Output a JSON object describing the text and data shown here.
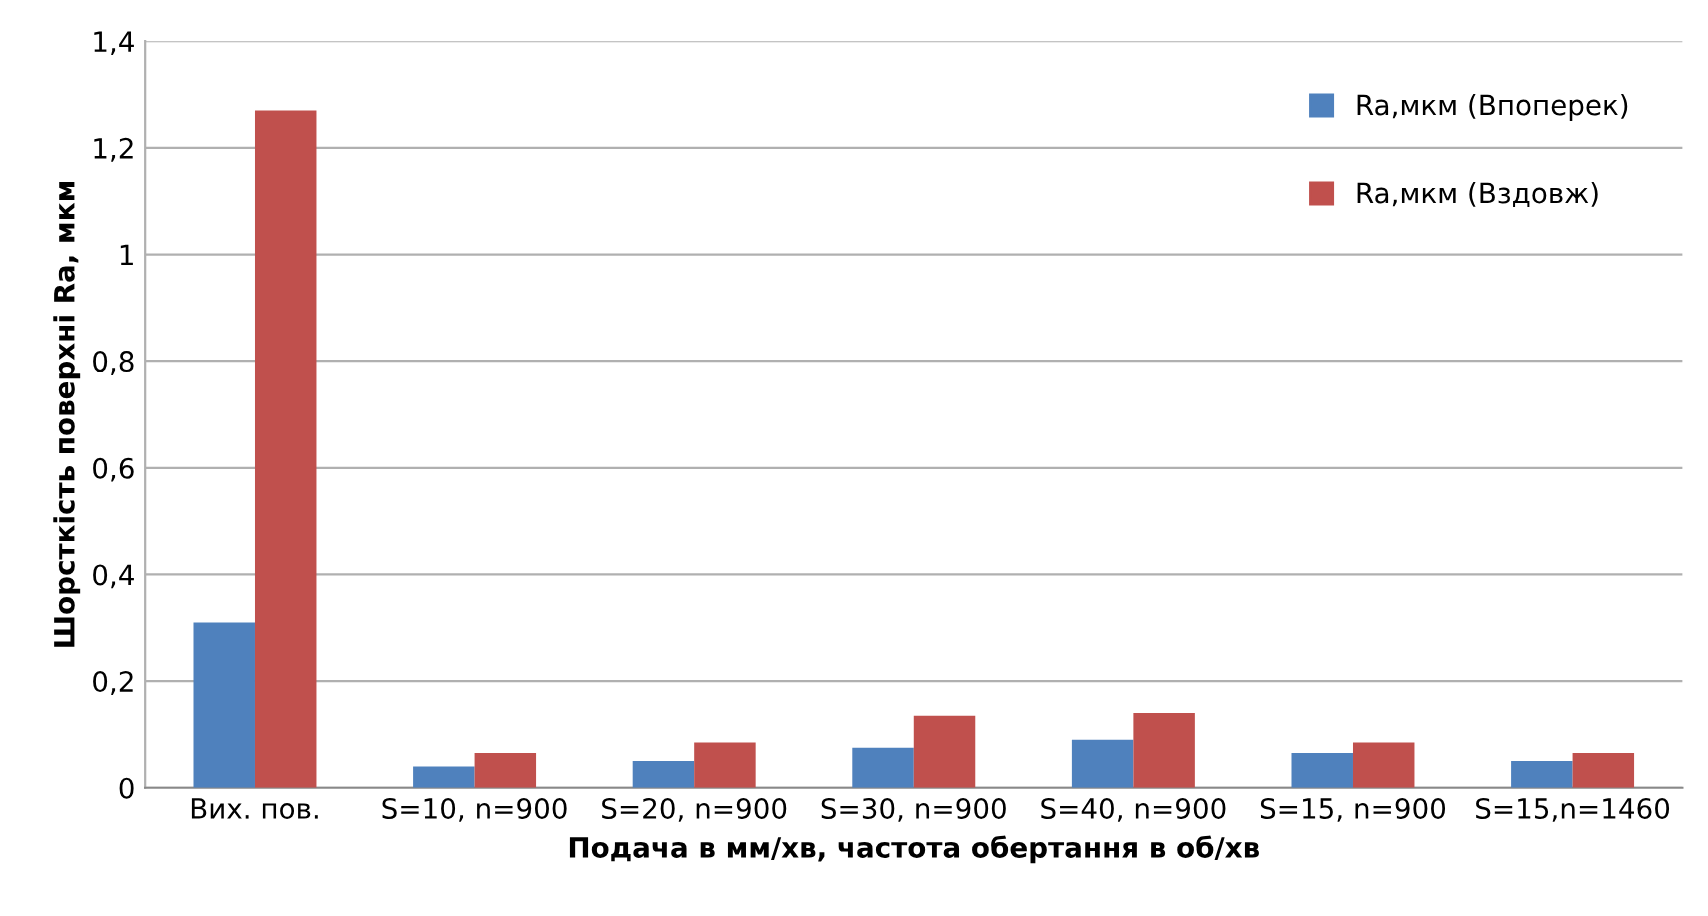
{
  "chart_data": {
    "type": "bar",
    "xlabel": "Подача в мм/хв, частота обертання в об/хв",
    "ylabel": "Шорсткість поверхні Ra, мкм",
    "categories": [
      "Вих. пов.",
      "S=10, n=900",
      "S=20, n=900",
      "S=30, n=900",
      "S=40, n=900",
      "S=15, n=900",
      "S=15,n=1460"
    ],
    "series": [
      {
        "name": "Ra,мкм (Впоперек)",
        "color": "#4f81bd",
        "values": [
          0.31,
          0.04,
          0.05,
          0.075,
          0.09,
          0.065,
          0.05
        ]
      },
      {
        "name": "Ra,мкм (Вздовж)",
        "color": "#c0504d",
        "values": [
          1.27,
          0.065,
          0.085,
          0.135,
          0.14,
          0.085,
          0.065
        ]
      }
    ],
    "ylim": [
      0,
      1.4
    ],
    "yticks": [
      0,
      {
        "value": 0.2,
        "label": "0,2"
      },
      {
        "value": 0.4,
        "label": "0,4"
      },
      {
        "value": 0.6,
        "label": "0,6"
      },
      {
        "value": 0.8,
        "label": "0,8"
      },
      1,
      {
        "value": 1.2,
        "label": "1,2"
      },
      {
        "value": 1.4,
        "label": "1,4"
      }
    ],
    "grid": "y",
    "legend": "top right"
  }
}
